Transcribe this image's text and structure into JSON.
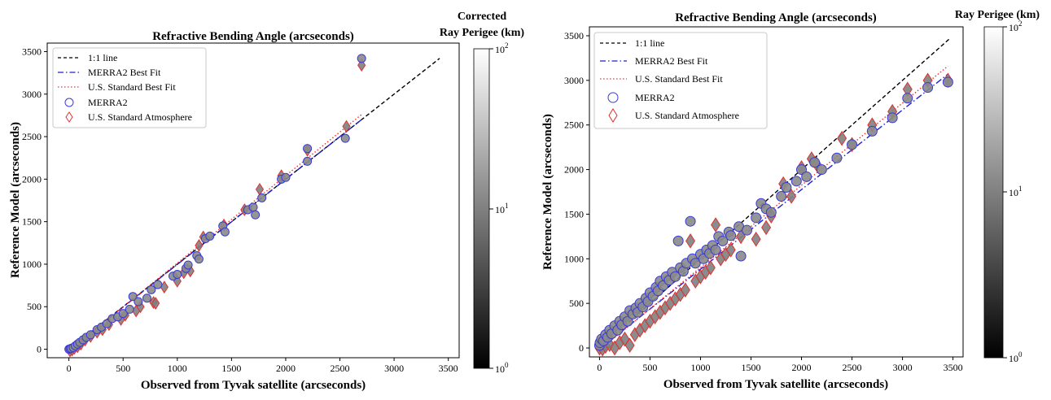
{
  "chart_data": [
    {
      "type": "scatter",
      "title": "Refractive Bending Angle (arcseconds)",
      "xlabel": "Observed from Tyvak satellite (arcseconds)",
      "ylabel": "Reference Model (arcseconds)",
      "xlim": [
        -200,
        3600
      ],
      "ylim": [
        -100,
        3600
      ],
      "x_ticks": [
        0,
        500,
        1000,
        1500,
        2000,
        2500,
        3000,
        3500
      ],
      "y_ticks": [
        0,
        500,
        1000,
        1500,
        2000,
        2500,
        3000,
        3500
      ],
      "grid": false,
      "legend_position": "upper-left",
      "colorbar": {
        "title_lines": [
          "Corrected",
          "Ray Perigee (km)"
        ],
        "scale": "log",
        "range": [
          1,
          100
        ],
        "tick_labels": [
          "10^0",
          "10^1",
          "10^2"
        ],
        "colormap": "gray"
      },
      "lines": [
        {
          "name": "1:1 line",
          "style": "dashed",
          "color": "#000000",
          "x": [
            0,
            3420
          ],
          "y": [
            0,
            3420
          ]
        },
        {
          "name": "MERRA2 Best Fit",
          "style": "dashdot",
          "color": "#1f1fd6",
          "x": [
            0,
            2700
          ],
          "y": [
            -5,
            2700
          ]
        },
        {
          "name": "U.S. Standard Best Fit",
          "style": "dotted",
          "color": "#ff2a2a",
          "x": [
            0,
            2700
          ],
          "y": [
            -15,
            2760
          ]
        }
      ],
      "series": [
        {
          "name": "MERRA2",
          "marker": "circle",
          "edge_color": "#3a3ad6",
          "points": [
            [
              0,
              0
            ],
            [
              10,
              5
            ],
            [
              20,
              10
            ],
            [
              40,
              20
            ],
            [
              60,
              40
            ],
            [
              80,
              60
            ],
            [
              100,
              80
            ],
            [
              130,
              110
            ],
            [
              160,
              140
            ],
            [
              200,
              170
            ],
            [
              260,
              230
            ],
            [
              300,
              260
            ],
            [
              350,
              300
            ],
            [
              400,
              360
            ],
            [
              450,
              380
            ],
            [
              500,
              420
            ],
            [
              560,
              470
            ],
            [
              590,
              620
            ],
            [
              640,
              560
            ],
            [
              720,
              600
            ],
            [
              760,
              700
            ],
            [
              820,
              760
            ],
            [
              960,
              860
            ],
            [
              1000,
              880
            ],
            [
              1080,
              950
            ],
            [
              1100,
              990
            ],
            [
              1180,
              1100
            ],
            [
              1200,
              1060
            ],
            [
              1260,
              1300
            ],
            [
              1300,
              1330
            ],
            [
              1420,
              1450
            ],
            [
              1440,
              1380
            ],
            [
              1650,
              1640
            ],
            [
              1700,
              1670
            ],
            [
              1720,
              1580
            ],
            [
              1780,
              1780
            ],
            [
              1960,
              2000
            ],
            [
              2000,
              2020
            ],
            [
              2200,
              2210
            ],
            [
              2200,
              2360
            ],
            [
              2550,
              2480
            ],
            [
              2700,
              3420
            ]
          ]
        },
        {
          "name": "U.S. Standard Atmosphere",
          "marker": "diamond",
          "edge_color": "#e03030",
          "points": [
            [
              10,
              -20
            ],
            [
              30,
              -10
            ],
            [
              50,
              10
            ],
            [
              80,
              30
            ],
            [
              110,
              60
            ],
            [
              150,
              110
            ],
            [
              200,
              150
            ],
            [
              260,
              200
            ],
            [
              310,
              230
            ],
            [
              370,
              290
            ],
            [
              480,
              350
            ],
            [
              520,
              400
            ],
            [
              620,
              450
            ],
            [
              660,
              500
            ],
            [
              780,
              550
            ],
            [
              800,
              540
            ],
            [
              880,
              730
            ],
            [
              1000,
              800
            ],
            [
              1060,
              900
            ],
            [
              1120,
              920
            ],
            [
              1200,
              1220
            ],
            [
              1240,
              1320
            ],
            [
              1430,
              1460
            ],
            [
              1620,
              1640
            ],
            [
              1760,
              1880
            ],
            [
              1960,
              2040
            ],
            [
              2200,
              2340
            ],
            [
              2560,
              2620
            ],
            [
              2700,
              3340
            ]
          ]
        }
      ]
    },
    {
      "type": "scatter",
      "title": "Refractive Bending Angle (arcseconds)",
      "xlabel": "Observed from Tyvak satellite (arcseconds)",
      "ylabel": "Reference Model (arcseconds)",
      "xlim": [
        -100,
        3600
      ],
      "ylim": [
        -100,
        3600
      ],
      "x_ticks": [
        0,
        500,
        1000,
        1500,
        2000,
        2500,
        3000,
        3500
      ],
      "y_ticks": [
        0,
        500,
        1000,
        1500,
        2000,
        2500,
        3000,
        3500
      ],
      "grid": false,
      "legend_position": "upper-left",
      "colorbar": {
        "title_lines": [
          "Ray Perigee (km)"
        ],
        "scale": "log",
        "range": [
          1,
          100
        ],
        "tick_labels": [
          "10^0",
          "10^1",
          "10^2"
        ],
        "colormap": "gray"
      },
      "lines": [
        {
          "name": "1:1 line",
          "style": "dashed",
          "color": "#000000",
          "x": [
            0,
            3460
          ],
          "y": [
            0,
            3460
          ]
        },
        {
          "name": "MERRA2 Best Fit",
          "style": "dashdot",
          "color": "#1f1fd6",
          "x": [
            0,
            3450
          ],
          "y": [
            -10,
            3070
          ]
        },
        {
          "name": "U.S. Standard Best Fit",
          "style": "dotted",
          "color": "#ff2a2a",
          "x": [
            0,
            3450
          ],
          "y": [
            -20,
            3160
          ]
        }
      ],
      "series": [
        {
          "name": "MERRA2",
          "marker": "circle",
          "edge_color": "#3a3ad6",
          "points": [
            [
              0,
              30
            ],
            [
              5,
              60
            ],
            [
              20,
              100
            ],
            [
              40,
              80
            ],
            [
              60,
              150
            ],
            [
              80,
              120
            ],
            [
              100,
              200
            ],
            [
              120,
              160
            ],
            [
              150,
              250
            ],
            [
              180,
              200
            ],
            [
              200,
              300
            ],
            [
              220,
              260
            ],
            [
              250,
              350
            ],
            [
              280,
              300
            ],
            [
              300,
              420
            ],
            [
              330,
              380
            ],
            [
              360,
              450
            ],
            [
              380,
              400
            ],
            [
              400,
              500
            ],
            [
              430,
              460
            ],
            [
              460,
              560
            ],
            [
              480,
              520
            ],
            [
              500,
              620
            ],
            [
              530,
              580
            ],
            [
              560,
              680
            ],
            [
              580,
              640
            ],
            [
              600,
              750
            ],
            [
              630,
              700
            ],
            [
              660,
              800
            ],
            [
              690,
              760
            ],
            [
              720,
              850
            ],
            [
              750,
              800
            ],
            [
              780,
              1200
            ],
            [
              800,
              900
            ],
            [
              830,
              860
            ],
            [
              860,
              950
            ],
            [
              900,
              1420
            ],
            [
              920,
              1000
            ],
            [
              950,
              950
            ],
            [
              1000,
              1050
            ],
            [
              1030,
              1000
            ],
            [
              1060,
              1100
            ],
            [
              1090,
              1060
            ],
            [
              1120,
              1150
            ],
            [
              1150,
              1100
            ],
            [
              1180,
              1250
            ],
            [
              1220,
              1200
            ],
            [
              1280,
              1300
            ],
            [
              1300,
              1260
            ],
            [
              1380,
              1360
            ],
            [
              1400,
              1030
            ],
            [
              1460,
              1320
            ],
            [
              1550,
              1460
            ],
            [
              1600,
              1620
            ],
            [
              1650,
              1560
            ],
            [
              1700,
              1520
            ],
            [
              1800,
              1700
            ],
            [
              1850,
              1800
            ],
            [
              1950,
              1870
            ],
            [
              2000,
              2000
            ],
            [
              2050,
              1920
            ],
            [
              2130,
              2080
            ],
            [
              2200,
              2000
            ],
            [
              2350,
              2130
            ],
            [
              2500,
              2280
            ],
            [
              2700,
              2430
            ],
            [
              2900,
              2580
            ],
            [
              3050,
              2800
            ],
            [
              3250,
              2920
            ],
            [
              3450,
              2980
            ]
          ]
        },
        {
          "name": "U.S. Standard Atmosphere",
          "marker": "diamond",
          "edge_color": "#e03030",
          "points": [
            [
              0,
              0
            ],
            [
              30,
              -10
            ],
            [
              60,
              20
            ],
            [
              100,
              40
            ],
            [
              150,
              0
            ],
            [
              200,
              60
            ],
            [
              250,
              100
            ],
            [
              300,
              30
            ],
            [
              350,
              150
            ],
            [
              400,
              200
            ],
            [
              450,
              250
            ],
            [
              500,
              300
            ],
            [
              550,
              350
            ],
            [
              600,
              400
            ],
            [
              650,
              450
            ],
            [
              700,
              500
            ],
            [
              750,
              550
            ],
            [
              800,
              600
            ],
            [
              850,
              650
            ],
            [
              900,
              1200
            ],
            [
              950,
              750
            ],
            [
              1000,
              800
            ],
            [
              1050,
              850
            ],
            [
              1100,
              900
            ],
            [
              1150,
              1380
            ],
            [
              1200,
              1000
            ],
            [
              1250,
              1050
            ],
            [
              1300,
              1100
            ],
            [
              1400,
              1250
            ],
            [
              1550,
              1220
            ],
            [
              1650,
              1350
            ],
            [
              1700,
              1480
            ],
            [
              1820,
              1840
            ],
            [
              1900,
              1700
            ],
            [
              2000,
              2020
            ],
            [
              2100,
              2120
            ],
            [
              2150,
              2060
            ],
            [
              2400,
              2350
            ],
            [
              2500,
              2280
            ],
            [
              2700,
              2500
            ],
            [
              2900,
              2650
            ],
            [
              3050,
              2900
            ],
            [
              3250,
              3000
            ],
            [
              3450,
              3000
            ]
          ]
        }
      ]
    }
  ]
}
